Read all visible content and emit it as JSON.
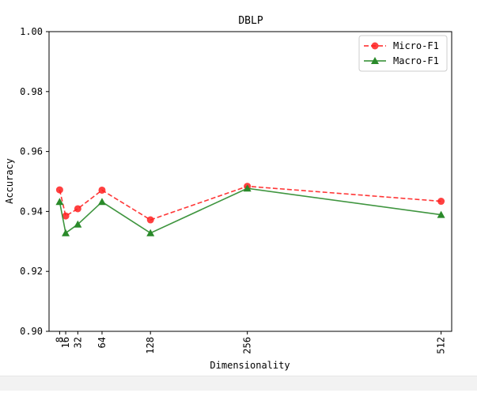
{
  "chart_data": {
    "type": "line",
    "title": "DBLP",
    "xlabel": "Dimensionality",
    "ylabel": "Accuracy",
    "x": [
      8,
      16,
      32,
      64,
      128,
      256,
      512
    ],
    "x_tick_labels": [
      "8",
      "16",
      "32",
      "64",
      "128",
      "256",
      "512"
    ],
    "y_tick_labels": [
      "0.90",
      "0.92",
      "0.94",
      "0.96",
      "0.98",
      "1.00"
    ],
    "xlim": [
      -6,
      526
    ],
    "ylim": [
      0.9,
      1.0
    ],
    "grid": false,
    "legend_position": "top-right",
    "series": [
      {
        "name": "Micro-F1",
        "values": [
          0.9472,
          0.9385,
          0.9409,
          0.9471,
          0.9372,
          0.9484,
          0.9434
        ],
        "color": "#ff2020",
        "line_style": "dashed",
        "marker": "circle"
      },
      {
        "name": "Macro-F1",
        "values": [
          0.9432,
          0.9328,
          0.9357,
          0.9432,
          0.9328,
          0.9477,
          0.9389
        ],
        "color": "#2a8a2a",
        "line_style": "solid",
        "marker": "triangle"
      }
    ]
  }
}
